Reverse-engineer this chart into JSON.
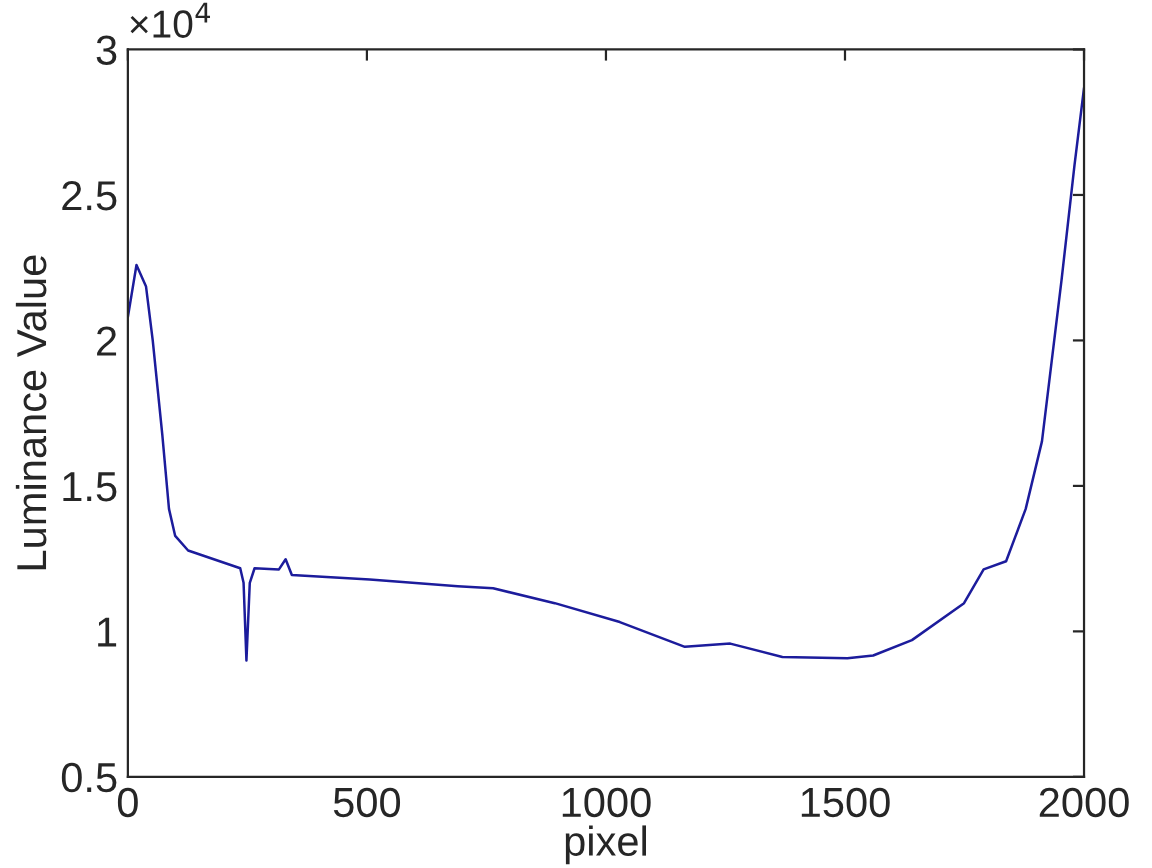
{
  "chart_data": {
    "type": "line",
    "xlabel": "pixel",
    "ylabel": "Luminance Value",
    "annotations": [
      "×10$^{4}$"
    ],
    "xlim": [
      0,
      2000
    ],
    "xticks": [
      0,
      500,
      1000,
      1500,
      2000
    ],
    "ylim": [
      0.5,
      3
    ],
    "yticks": [
      0.5,
      1,
      1.5,
      2,
      2.5,
      3
    ],
    "grid": false,
    "legend": false,
    "marker": "none",
    "line_style": "solid",
    "series": [
      {
        "color": "#1c1c9c",
        "x": [
          0,
          18,
          38,
          52,
          72,
          86,
          99,
          126,
          235,
          242,
          248,
          255,
          265,
          316,
          330,
          343,
          506,
          554,
          690,
          764,
          893,
          1029,
          1165,
          1260,
          1369,
          1505,
          1559,
          1640,
          1749,
          1790,
          1837,
          1878,
          1912,
          1953,
          1980,
          2000
        ],
        "values": [
          2.08,
          2.259,
          2.185,
          2.0,
          1.676,
          1.421,
          1.328,
          1.278,
          1.217,
          1.167,
          0.9,
          1.167,
          1.217,
          1.213,
          1.248,
          1.194,
          1.178,
          1.172,
          1.155,
          1.148,
          1.097,
          1.032,
          0.947,
          0.958,
          0.912,
          0.908,
          0.917,
          0.97,
          1.097,
          1.213,
          1.241,
          1.421,
          1.653,
          2.208,
          2.602,
          2.868
        ]
      }
    ]
  }
}
